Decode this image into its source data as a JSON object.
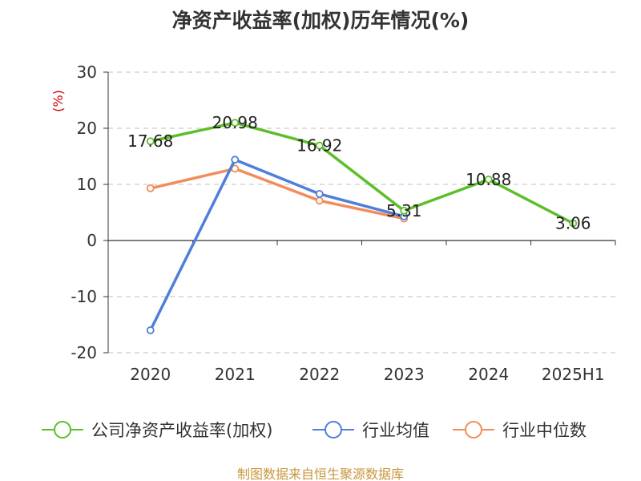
{
  "chart_data": {
    "type": "line",
    "title": "净资产收益率(加权)历年情况(%)",
    "ylabel": "(%)",
    "xlabel": "",
    "categories": [
      "2020",
      "2021",
      "2022",
      "2023",
      "2024",
      "2025H1"
    ],
    "y_ticks": [
      "30",
      "20",
      "10",
      "0",
      "-10",
      "-20"
    ],
    "ylim": [
      -20,
      30
    ],
    "grid": "horizontal dashed",
    "legend_position": "bottom",
    "series": [
      {
        "name": "公司净资产收益率(加权)",
        "color": "#5cbf2a",
        "values": [
          17.68,
          20.98,
          16.92,
          5.31,
          10.88,
          3.06
        ],
        "labels": [
          "17.68",
          "20.98",
          "16.92",
          "5.31",
          "10.88",
          "3.06"
        ]
      },
      {
        "name": "行业均值",
        "color": "#4e7fd9",
        "values": [
          -16.0,
          14.4,
          8.3,
          4.3,
          null,
          null
        ]
      },
      {
        "name": "行业中位数",
        "color": "#f28c5b",
        "values": [
          9.3,
          12.8,
          7.1,
          3.9,
          null,
          null
        ]
      }
    ]
  },
  "source": "制图数据来自恒生聚源数据库"
}
